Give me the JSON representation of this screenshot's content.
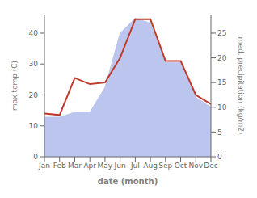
{
  "chart_data": {
    "type": "line",
    "xlabel": "date (month)",
    "ylabel": "max temp (C)",
    "y2label": "med. precipitation (kg/m2)",
    "categories": [
      "Jan",
      "Feb",
      "Mar",
      "Apr",
      "May",
      "Jun",
      "Jul",
      "Aug",
      "Sep",
      "Oct",
      "Nov",
      "Dec"
    ],
    "series": [
      {
        "type": "area",
        "axis": "y2",
        "color": "#bbc5ee",
        "values": [
          8,
          8,
          9,
          9,
          14,
          25,
          28,
          27,
          19,
          19,
          12,
          10
        ]
      },
      {
        "type": "line",
        "color": "#c0392b",
        "values": [
          14.0,
          13.5,
          25.5,
          23.5,
          24.0,
          32.0,
          44.5,
          44.5,
          31.0,
          31.0,
          20.0,
          17.0
        ]
      }
    ],
    "ylim": [
      0,
      46
    ],
    "yticks": [
      0,
      10,
      20,
      30,
      40
    ],
    "y2lim": [
      0,
      28.75
    ],
    "y2ticks": [
      0,
      5,
      10,
      15,
      20,
      25
    ],
    "grid": false
  }
}
